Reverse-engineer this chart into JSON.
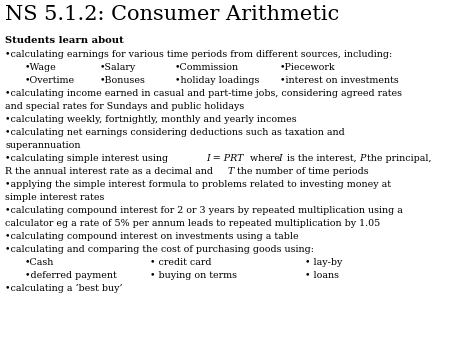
{
  "title": "NS 5.1.2: Consumer Arithmetic",
  "background_color": "#ffffff",
  "text_color": "#000000",
  "title_fontsize": 15,
  "bold_fontsize": 7.2,
  "body_fontsize": 6.8,
  "figsize": [
    4.5,
    3.38
  ],
  "dpi": 100
}
